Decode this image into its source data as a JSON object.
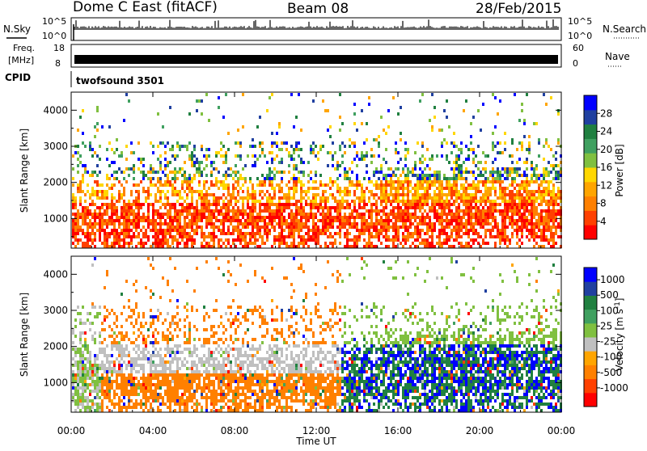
{
  "header": {
    "station": "Dome C East (fitACF)",
    "beam": "Beam 08",
    "date": "28/Feb/2015"
  },
  "top_panels": {
    "nsky": {
      "label": "N.Sky",
      "y_ticks": [
        "10^5",
        "10^0"
      ],
      "right_label": "N.Search",
      "right_ticks": [
        "10^5",
        "10^0"
      ]
    },
    "freq": {
      "label_line1": "Freq.",
      "label_line2": "[MHz]",
      "y_ticks": [
        "18",
        "8"
      ],
      "right_label": "Nave",
      "right_ticks": [
        "60",
        "0"
      ]
    },
    "cpid": {
      "label": "CPID",
      "value": "twofsound 3501"
    }
  },
  "colors": {
    "power": [
      "#0000ff",
      "#2040a0",
      "#208040",
      "#40a060",
      "#80c040",
      "#ffd700",
      "#ffa500",
      "#ff8000",
      "#ff4000",
      "#ff0000"
    ],
    "velocity": [
      "#0000ff",
      "#2040a0",
      "#208040",
      "#40a060",
      "#80c040",
      "#c0c0c0",
      "#ffa500",
      "#ff8000",
      "#ff4000",
      "#ff0000"
    ]
  },
  "chart_data": [
    {
      "type": "heatmap",
      "name": "Power",
      "ylabel": "Slant Range [km]",
      "ylim": [
        180,
        4500
      ],
      "y_ticks": [
        "1000",
        "2000",
        "3000",
        "4000"
      ],
      "xlim": [
        0,
        24
      ],
      "colorbar": {
        "label": "Power [dB]",
        "ticks": [
          "4",
          "8",
          "12",
          "16",
          "20",
          "24",
          "28"
        ],
        "range": [
          0,
          32
        ]
      }
    },
    {
      "type": "heatmap",
      "name": "Velocity",
      "ylabel": "Slant Range [km]",
      "ylim": [
        180,
        4500
      ],
      "y_ticks": [
        "1000",
        "2000",
        "3000",
        "4000"
      ],
      "xlim": [
        0,
        24
      ],
      "colorbar": {
        "label": "Velocity [m s",
        "label_sup": "-1",
        "label_close": "]",
        "ticks": [
          "1000",
          "500",
          "100",
          "25",
          "-25",
          "-100",
          "-500",
          "-1000"
        ]
      }
    }
  ],
  "xaxis": {
    "title": "Time UT",
    "ticks": [
      "00:00",
      "04:00",
      "08:00",
      "12:00",
      "16:00",
      "20:00",
      "00:00"
    ]
  }
}
